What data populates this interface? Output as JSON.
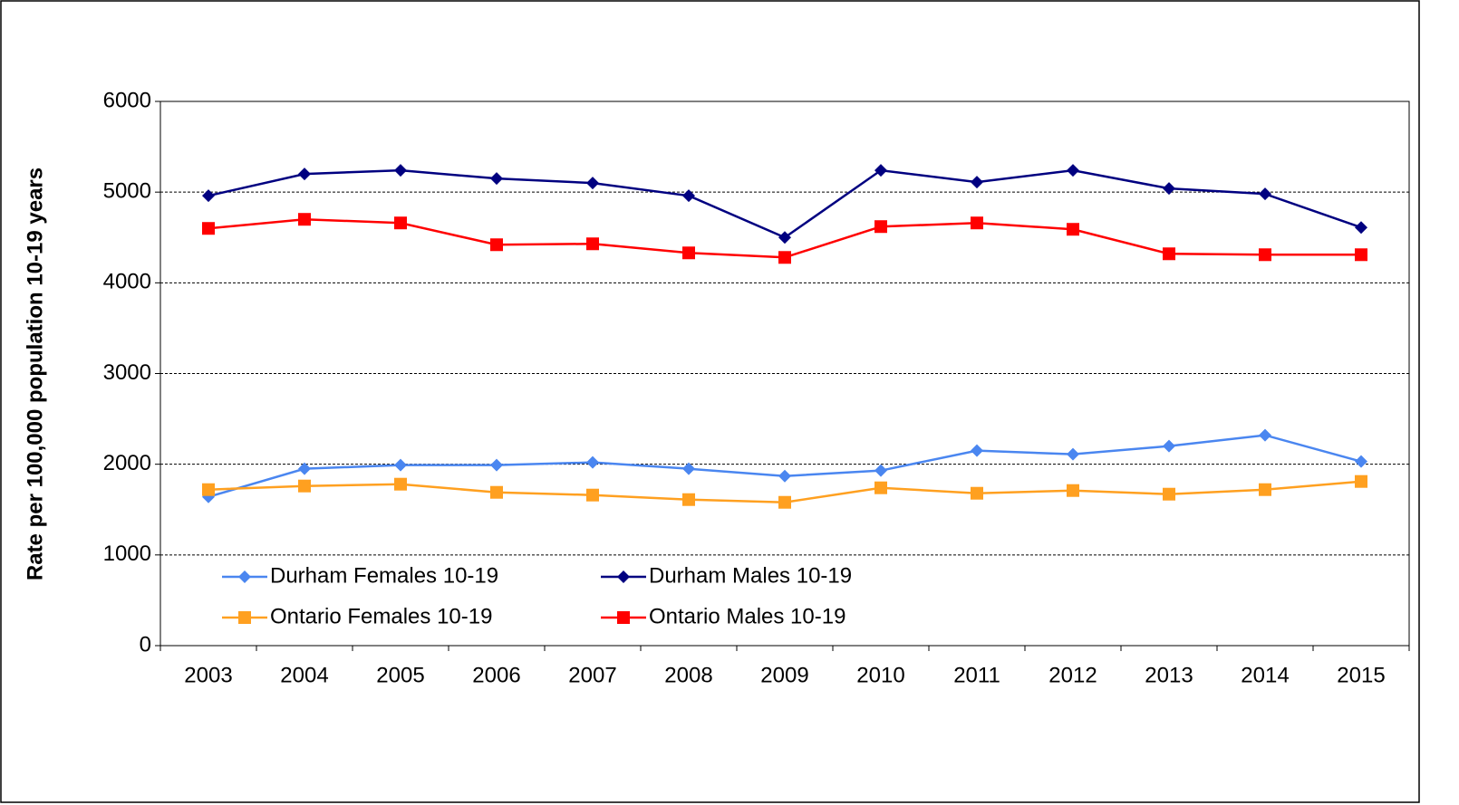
{
  "chart_data": {
    "type": "line",
    "y_label": "Rate per 100,000 population 10-19 years",
    "categories": [
      "2003",
      "2004",
      "2005",
      "2006",
      "2007",
      "2008",
      "2009",
      "2010",
      "2011",
      "2012",
      "2013",
      "2014",
      "2015"
    ],
    "series": [
      {
        "name": "Durham Females 10-19",
        "color": "#4a86f0",
        "marker": "diamond",
        "values": [
          1640,
          1950,
          1990,
          1990,
          2020,
          1950,
          1870,
          1930,
          2150,
          2110,
          2200,
          2320,
          2030
        ]
      },
      {
        "name": "Durham Males 10-19",
        "color": "#000080",
        "marker": "diamond",
        "values": [
          4960,
          5200,
          5240,
          5150,
          5100,
          4960,
          4500,
          5240,
          5110,
          5240,
          5040,
          4980,
          4610
        ]
      },
      {
        "name": "Ontario Females 10-19",
        "color": "#ffa020",
        "marker": "square",
        "values": [
          1720,
          1760,
          1780,
          1690,
          1660,
          1610,
          1580,
          1740,
          1680,
          1710,
          1670,
          1720,
          1810
        ]
      },
      {
        "name": "Ontario Males 10-19",
        "color": "#ff0000",
        "marker": "square",
        "values": [
          4600,
          4700,
          4660,
          4420,
          4430,
          4330,
          4280,
          4620,
          4660,
          4590,
          4320,
          4310,
          4310
        ]
      }
    ],
    "ylim": [
      0,
      6000
    ],
    "yticks": [
      0,
      1000,
      2000,
      3000,
      4000,
      5000,
      6000
    ],
    "grid": true,
    "legend": "lower left"
  }
}
